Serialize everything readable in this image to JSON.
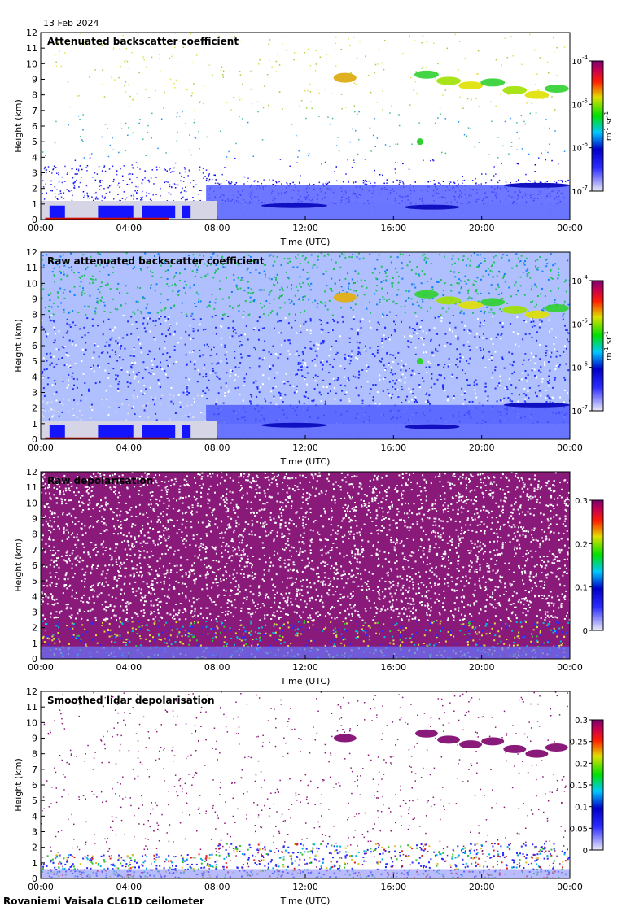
{
  "date_label": "13 Feb 2024",
  "footer_label": "Rovaniemi Vaisala CL61D ceilometer",
  "chart_data": [
    {
      "type": "heatmap",
      "title": "Attenuated backscatter coefficient",
      "xlabel": "Time (UTC)",
      "ylabel": "Height (km)",
      "x_ticks": [
        "00:00",
        "04:00",
        "08:00",
        "12:00",
        "16:00",
        "20:00",
        "00:00"
      ],
      "y_ticks": [
        "0",
        "1",
        "2",
        "3",
        "4",
        "5",
        "6",
        "7",
        "8",
        "9",
        "10",
        "11",
        "12"
      ],
      "xlim": [
        0,
        24
      ],
      "ylim": [
        0,
        12
      ],
      "colorbar": {
        "scale": "log",
        "ticks": [
          "10",
          "10",
          "10",
          "10"
        ],
        "exponents": [
          "-7",
          "-6",
          "-5",
          "-4"
        ],
        "unit": "m",
        "unit_exp1": "-1",
        "unit_mid": " sr",
        "unit_exp2": "-1"
      },
      "features": [
        {
          "kind": "boundary_layer",
          "t_start": 0,
          "t_end": 24,
          "top_km": 2.2
        },
        {
          "kind": "cloud",
          "t_center": 13.8,
          "height_km": 9.2
        },
        {
          "kind": "cloud",
          "t_start": 17,
          "t_end": 23.8,
          "height_km": 8.2
        }
      ]
    },
    {
      "type": "heatmap",
      "title": "Raw attenuated backscatter coefficient",
      "xlabel": "Time (UTC)",
      "ylabel": "Height (km)",
      "x_ticks": [
        "00:00",
        "04:00",
        "08:00",
        "12:00",
        "16:00",
        "20:00",
        "00:00"
      ],
      "y_ticks": [
        "0",
        "1",
        "2",
        "3",
        "4",
        "5",
        "6",
        "7",
        "8",
        "9",
        "10",
        "11",
        "12"
      ],
      "xlim": [
        0,
        24
      ],
      "ylim": [
        0,
        12
      ],
      "colorbar": {
        "scale": "log",
        "ticks": [
          "10",
          "10",
          "10",
          "10"
        ],
        "exponents": [
          "-7",
          "-6",
          "-5",
          "-4"
        ],
        "unit": "m",
        "unit_exp1": "-1",
        "unit_mid": " sr",
        "unit_exp2": "-1"
      }
    },
    {
      "type": "heatmap",
      "title": "Raw depolarisation",
      "xlabel": "Time (UTC)",
      "ylabel": "Height (km)",
      "x_ticks": [
        "00:00",
        "04:00",
        "08:00",
        "12:00",
        "16:00",
        "20:00",
        "00:00"
      ],
      "y_ticks": [
        "0",
        "1",
        "2",
        "3",
        "4",
        "5",
        "6",
        "7",
        "8",
        "9",
        "10",
        "11",
        "12"
      ],
      "xlim": [
        0,
        24
      ],
      "ylim": [
        0,
        12
      ],
      "colorbar": {
        "scale": "linear",
        "range": [
          0,
          0.3
        ],
        "ticks": [
          "0",
          "0.1",
          "0.2",
          "0.3"
        ]
      }
    },
    {
      "type": "heatmap",
      "title": "Smoothed lidar depolarisation",
      "xlabel": "Time (UTC)",
      "ylabel": "Height (km)",
      "x_ticks": [
        "00:00",
        "04:00",
        "08:00",
        "12:00",
        "16:00",
        "20:00",
        "00:00"
      ],
      "y_ticks": [
        "0",
        "1",
        "2",
        "3",
        "4",
        "5",
        "6",
        "7",
        "8",
        "9",
        "10",
        "11",
        "12"
      ],
      "xlim": [
        0,
        24
      ],
      "ylim": [
        0,
        12
      ],
      "colorbar": {
        "scale": "linear",
        "range": [
          0,
          0.3
        ],
        "ticks": [
          "0",
          "0.05",
          "0.1",
          "0.15",
          "0.2",
          "0.25",
          "0.3"
        ]
      }
    }
  ]
}
